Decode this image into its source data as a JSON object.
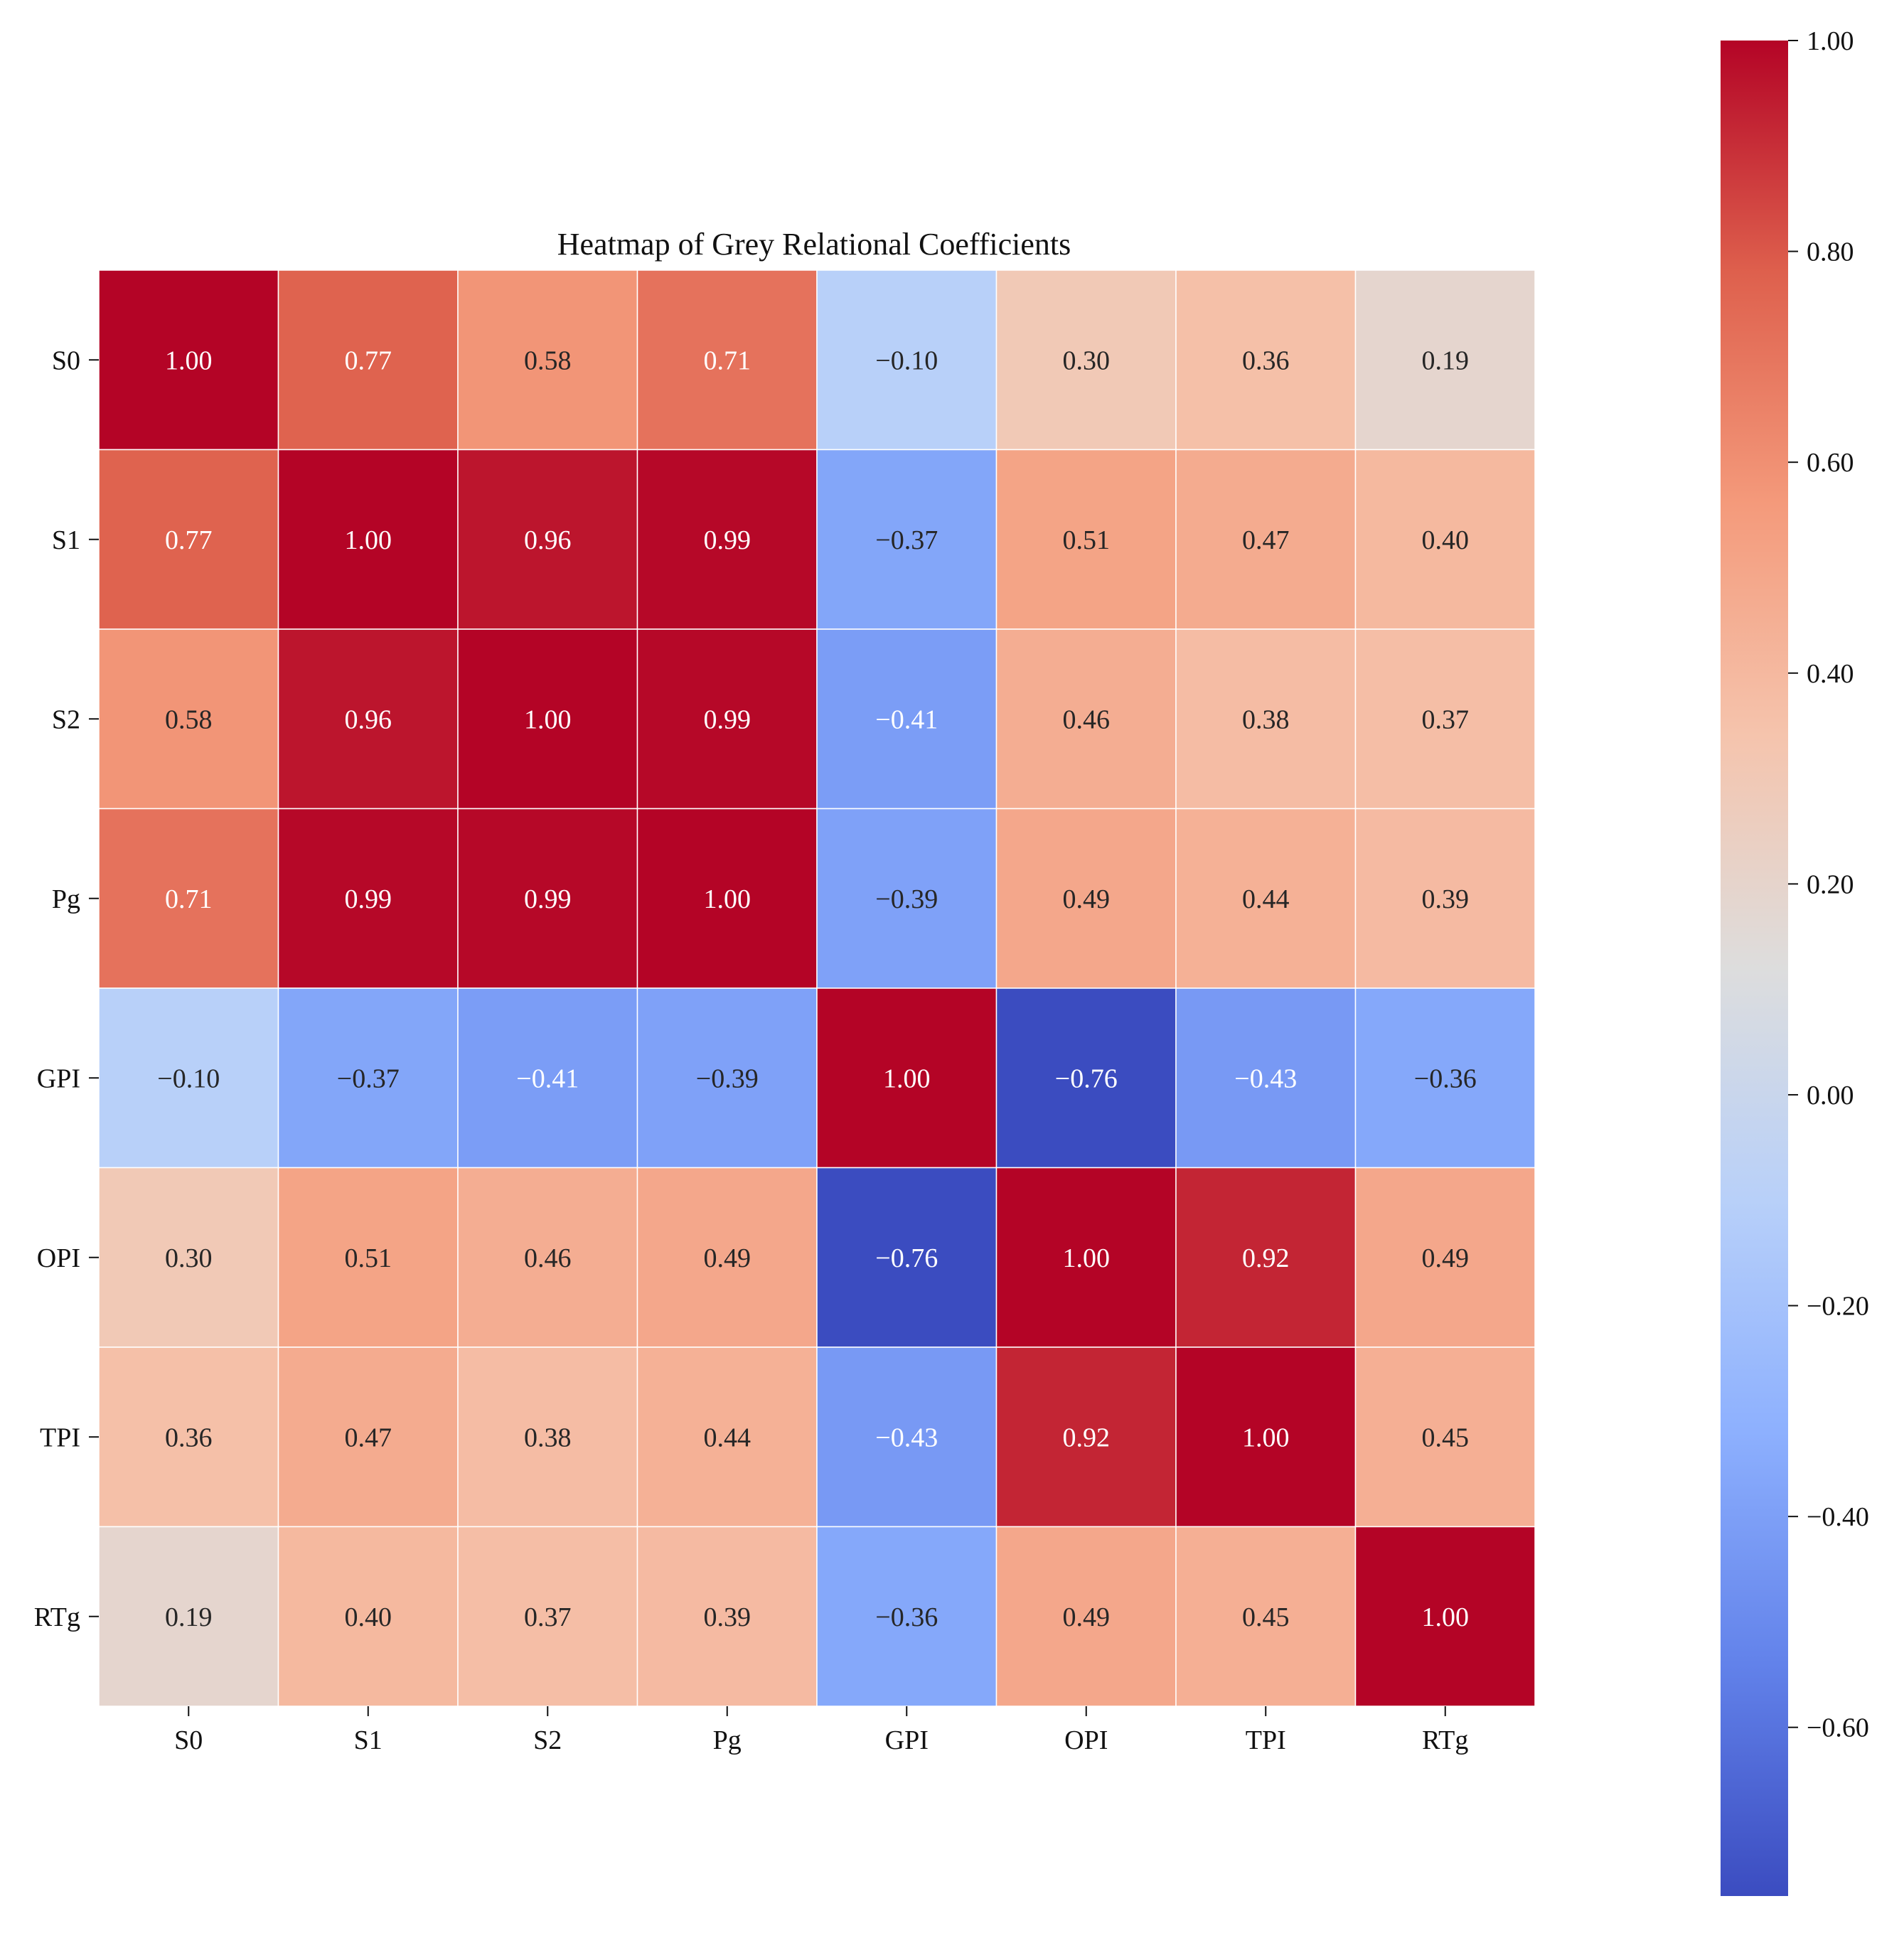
{
  "chart_data": {
    "type": "heatmap",
    "title": "Heatmap of Grey Relational Coefficients",
    "row_labels": [
      "S0",
      "S1",
      "S2",
      "Pg",
      "GPI",
      "OPI",
      "TPI",
      "RTg"
    ],
    "column_labels": [
      "S0",
      "S1",
      "S2",
      "Pg",
      "GPI",
      "OPI",
      "TPI",
      "RTg"
    ],
    "values": [
      [
        1.0,
        0.77,
        0.58,
        0.71,
        -0.1,
        0.3,
        0.36,
        0.19
      ],
      [
        0.77,
        1.0,
        0.96,
        0.99,
        -0.37,
        0.51,
        0.47,
        0.4
      ],
      [
        0.58,
        0.96,
        1.0,
        0.99,
        -0.41,
        0.46,
        0.38,
        0.37
      ],
      [
        0.71,
        0.99,
        0.99,
        1.0,
        -0.39,
        0.49,
        0.44,
        0.39
      ],
      [
        -0.1,
        -0.37,
        -0.41,
        -0.39,
        1.0,
        -0.76,
        -0.43,
        -0.36
      ],
      [
        0.3,
        0.51,
        0.46,
        0.49,
        -0.76,
        1.0,
        0.92,
        0.49
      ],
      [
        0.36,
        0.47,
        0.38,
        0.44,
        -0.43,
        0.92,
        1.0,
        0.45
      ],
      [
        0.19,
        0.4,
        0.37,
        0.39,
        -0.36,
        0.49,
        0.45,
        1.0
      ]
    ],
    "colormap": "coolwarm",
    "vmin": -0.76,
    "vmax": 1.0,
    "colorbar": {
      "ticks": [
        1.0,
        0.8,
        0.6,
        0.4,
        0.2,
        0.0,
        -0.2,
        -0.4,
        -0.6
      ],
      "tick_labels": [
        "1.00",
        "0.80",
        "0.60",
        "0.40",
        "0.20",
        "0.00",
        "−0.20",
        "−0.40",
        "−0.60"
      ]
    },
    "annotation_format": "0.00",
    "xlabel": "",
    "ylabel": ""
  }
}
